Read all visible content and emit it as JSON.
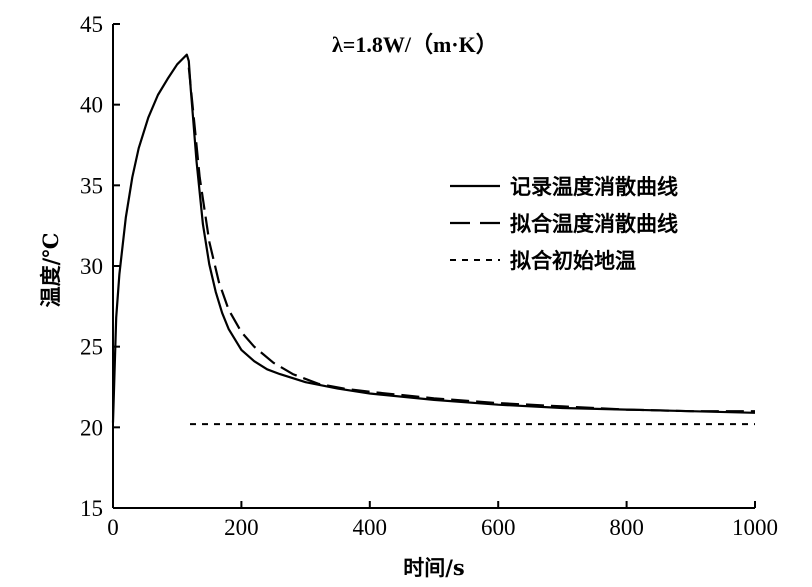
{
  "chart_data": {
    "type": "line",
    "title": "",
    "annotation": "λ=1.8W/（m·K）",
    "xlabel": "时间/s",
    "ylabel": "温度/℃",
    "xlim": [
      0,
      1000
    ],
    "ylim": [
      15,
      45
    ],
    "xticks": [
      0,
      200,
      400,
      600,
      800,
      1000
    ],
    "yticks": [
      15,
      20,
      25,
      30,
      35,
      40,
      45
    ],
    "grid": false,
    "legend_position": "right",
    "series": [
      {
        "name": "记录温度消散曲线",
        "style": "solid",
        "x": [
          0,
          5,
          10,
          20,
          30,
          40,
          55,
          70,
          85,
          100,
          110,
          115,
          118,
          121,
          125,
          130,
          140,
          150,
          160,
          170,
          180,
          200,
          220,
          240,
          260,
          300,
          350,
          400,
          500,
          600,
          700,
          800,
          900,
          1000
        ],
        "y": [
          20.3,
          26.8,
          29.5,
          33.0,
          35.5,
          37.3,
          39.2,
          40.6,
          41.6,
          42.5,
          42.9,
          43.1,
          42.7,
          41.0,
          39.0,
          36.5,
          32.6,
          30.1,
          28.4,
          27.1,
          26.1,
          24.8,
          24.1,
          23.6,
          23.3,
          22.8,
          22.4,
          22.1,
          21.7,
          21.4,
          21.2,
          21.1,
          21.0,
          20.9
        ]
      },
      {
        "name": "拟合温度消散曲线",
        "style": "dashed",
        "x": [
          118,
          125,
          135,
          150,
          165,
          180,
          200,
          220,
          250,
          280,
          320,
          360,
          400,
          500,
          600,
          700,
          800,
          900,
          1000
        ],
        "y": [
          42.3,
          39.5,
          35.5,
          31.5,
          29.0,
          27.3,
          25.9,
          25.0,
          24.0,
          23.3,
          22.7,
          22.4,
          22.2,
          21.8,
          21.5,
          21.3,
          21.1,
          21.0,
          21.0
        ]
      },
      {
        "name": "拟合初始地温",
        "style": "dotted",
        "x": [
          120,
          1000
        ],
        "y": [
          20.2,
          20.2
        ]
      }
    ]
  }
}
